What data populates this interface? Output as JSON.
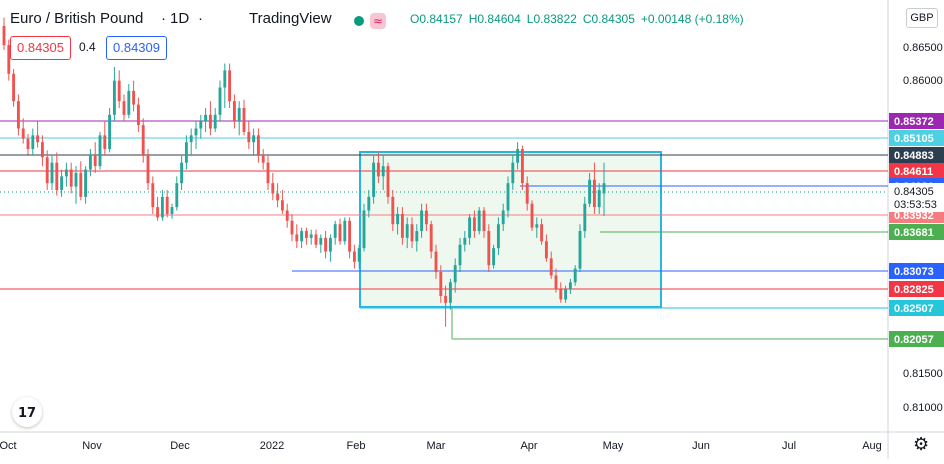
{
  "header": {
    "symbol": "Euro / British Pound",
    "separator": "·",
    "interval": "1D",
    "provider": "TradingView",
    "open": "O0.84157",
    "high": "H0.84604",
    "low": "L0.83822",
    "close": "C0.84305",
    "change": "+0.00148 (+0.18%)",
    "sell_price": "0.84305",
    "spread": "0.4",
    "buy_price": "0.84309"
  },
  "currency_button": "GBP",
  "colors": {
    "up": "#26a69a",
    "down": "#ef5350",
    "box_fill": "#e8f5e9",
    "box_border": "#26b5e5",
    "purple": "#9c27b0",
    "cyan": "#4dd0e1",
    "navy": "#2c3e50",
    "red": "#f23645",
    "pink": "#f77c80",
    "blue": "#2962ff",
    "green": "#4caf50",
    "cyan2": "#26c6da",
    "salmon": "#f44336"
  },
  "chart_data": {
    "type": "candlestick",
    "x_labels": [
      "Oct",
      "Nov",
      "Dec",
      "2022",
      "Feb",
      "Mar",
      "Apr",
      "May",
      "Jun",
      "Jul",
      "Aug"
    ],
    "y_ticks": [
      "0.86500",
      "0.86000",
      "0.81500",
      "0.81000"
    ],
    "ylim": [
      0.8066,
      0.8698
    ],
    "horizontal_levels": [
      {
        "value": 0.85372,
        "label": "0.85372",
        "color": "#9c27b0"
      },
      {
        "value": 0.85105,
        "label": "0.85105",
        "color": "#4dd0e1"
      },
      {
        "value": 0.84883,
        "label": "0.84883",
        "color": "#2c3e50"
      },
      {
        "value": 0.84611,
        "label": "0.84611",
        "color": "#f23645"
      },
      {
        "value": 0.84381,
        "label": "0.84381",
        "color": "#2962ff"
      },
      {
        "value": 0.83932,
        "label": "0.83932",
        "color": "#f77c80"
      },
      {
        "value": 0.83681,
        "label": "0.83681",
        "color": "#4caf50"
      },
      {
        "value": 0.83073,
        "label": "0.83073",
        "color": "#2962ff"
      },
      {
        "value": 0.82825,
        "label": "0.82825",
        "color": "#f23645"
      },
      {
        "value": 0.82507,
        "label": "0.82507",
        "color": "#26c6da"
      },
      {
        "value": 0.82057,
        "label": "0.82057",
        "color": "#4caf50"
      }
    ],
    "current_price": {
      "value": 0.84305,
      "label": "0.84305",
      "countdown": "03:53:53"
    },
    "range_box": {
      "low": 0.82507,
      "high": 0.84883
    },
    "candles": [
      {
        "o": 0.866,
        "h": 0.8672,
        "l": 0.8625,
        "c": 0.8632
      },
      {
        "o": 0.8632,
        "h": 0.864,
        "l": 0.858,
        "c": 0.859
      },
      {
        "o": 0.859,
        "h": 0.8597,
        "l": 0.8542,
        "c": 0.855
      },
      {
        "o": 0.855,
        "h": 0.856,
        "l": 0.85,
        "c": 0.851
      },
      {
        "o": 0.851,
        "h": 0.8525,
        "l": 0.8488,
        "c": 0.8495
      },
      {
        "o": 0.8495,
        "h": 0.8502,
        "l": 0.8472,
        "c": 0.848
      },
      {
        "o": 0.848,
        "h": 0.851,
        "l": 0.847,
        "c": 0.85
      },
      {
        "o": 0.85,
        "h": 0.852,
        "l": 0.8482,
        "c": 0.849
      },
      {
        "o": 0.849,
        "h": 0.85,
        "l": 0.8455,
        "c": 0.8468
      },
      {
        "o": 0.8468,
        "h": 0.8478,
        "l": 0.842,
        "c": 0.843
      },
      {
        "o": 0.843,
        "h": 0.847,
        "l": 0.842,
        "c": 0.846
      },
      {
        "o": 0.846,
        "h": 0.8475,
        "l": 0.8412,
        "c": 0.842
      },
      {
        "o": 0.842,
        "h": 0.845,
        "l": 0.841,
        "c": 0.844
      },
      {
        "o": 0.844,
        "h": 0.846,
        "l": 0.8425,
        "c": 0.845
      },
      {
        "o": 0.845,
        "h": 0.846,
        "l": 0.8415,
        "c": 0.8425
      },
      {
        "o": 0.8425,
        "h": 0.8455,
        "l": 0.84,
        "c": 0.8445
      },
      {
        "o": 0.8445,
        "h": 0.8462,
        "l": 0.8405,
        "c": 0.841
      },
      {
        "o": 0.841,
        "h": 0.8455,
        "l": 0.84,
        "c": 0.845
      },
      {
        "o": 0.845,
        "h": 0.848,
        "l": 0.844,
        "c": 0.847
      },
      {
        "o": 0.847,
        "h": 0.849,
        "l": 0.8445,
        "c": 0.8455
      },
      {
        "o": 0.8455,
        "h": 0.8505,
        "l": 0.845,
        "c": 0.85
      },
      {
        "o": 0.85,
        "h": 0.852,
        "l": 0.847,
        "c": 0.848
      },
      {
        "o": 0.848,
        "h": 0.854,
        "l": 0.8475,
        "c": 0.853
      },
      {
        "o": 0.853,
        "h": 0.86,
        "l": 0.852,
        "c": 0.858
      },
      {
        "o": 0.858,
        "h": 0.8595,
        "l": 0.854,
        "c": 0.855
      },
      {
        "o": 0.855,
        "h": 0.856,
        "l": 0.852,
        "c": 0.853
      },
      {
        "o": 0.853,
        "h": 0.8575,
        "l": 0.8525,
        "c": 0.8565
      },
      {
        "o": 0.8565,
        "h": 0.858,
        "l": 0.8535,
        "c": 0.8545
      },
      {
        "o": 0.8545,
        "h": 0.8555,
        "l": 0.8505,
        "c": 0.8515
      },
      {
        "o": 0.8515,
        "h": 0.8525,
        "l": 0.846,
        "c": 0.847
      },
      {
        "o": 0.847,
        "h": 0.848,
        "l": 0.842,
        "c": 0.843
      },
      {
        "o": 0.843,
        "h": 0.844,
        "l": 0.8385,
        "c": 0.8395
      },
      {
        "o": 0.8395,
        "h": 0.841,
        "l": 0.8375,
        "c": 0.838
      },
      {
        "o": 0.838,
        "h": 0.842,
        "l": 0.8375,
        "c": 0.841
      },
      {
        "o": 0.841,
        "h": 0.842,
        "l": 0.838,
        "c": 0.8385
      },
      {
        "o": 0.8385,
        "h": 0.84,
        "l": 0.8378,
        "c": 0.8395
      },
      {
        "o": 0.8395,
        "h": 0.844,
        "l": 0.839,
        "c": 0.843
      },
      {
        "o": 0.843,
        "h": 0.847,
        "l": 0.842,
        "c": 0.846
      },
      {
        "o": 0.846,
        "h": 0.85,
        "l": 0.845,
        "c": 0.849
      },
      {
        "o": 0.849,
        "h": 0.851,
        "l": 0.847,
        "c": 0.85
      },
      {
        "o": 0.85,
        "h": 0.852,
        "l": 0.848,
        "c": 0.851
      },
      {
        "o": 0.851,
        "h": 0.853,
        "l": 0.8495,
        "c": 0.852
      },
      {
        "o": 0.852,
        "h": 0.854,
        "l": 0.8505,
        "c": 0.853
      },
      {
        "o": 0.853,
        "h": 0.855,
        "l": 0.85,
        "c": 0.851
      },
      {
        "o": 0.851,
        "h": 0.854,
        "l": 0.8505,
        "c": 0.853
      },
      {
        "o": 0.853,
        "h": 0.858,
        "l": 0.852,
        "c": 0.857
      },
      {
        "o": 0.857,
        "h": 0.8605,
        "l": 0.854,
        "c": 0.8595
      },
      {
        "o": 0.8595,
        "h": 0.8605,
        "l": 0.854,
        "c": 0.855
      },
      {
        "o": 0.855,
        "h": 0.856,
        "l": 0.851,
        "c": 0.852
      },
      {
        "o": 0.852,
        "h": 0.855,
        "l": 0.85,
        "c": 0.854
      },
      {
        "o": 0.854,
        "h": 0.8552,
        "l": 0.85,
        "c": 0.8505
      },
      {
        "o": 0.8505,
        "h": 0.852,
        "l": 0.848,
        "c": 0.849
      },
      {
        "o": 0.849,
        "h": 0.851,
        "l": 0.847,
        "c": 0.85
      },
      {
        "o": 0.85,
        "h": 0.851,
        "l": 0.846,
        "c": 0.847
      },
      {
        "o": 0.847,
        "h": 0.848,
        "l": 0.845,
        "c": 0.846
      },
      {
        "o": 0.846,
        "h": 0.847,
        "l": 0.842,
        "c": 0.843
      },
      {
        "o": 0.843,
        "h": 0.8445,
        "l": 0.8405,
        "c": 0.8415
      },
      {
        "o": 0.8415,
        "h": 0.843,
        "l": 0.8395,
        "c": 0.8405
      },
      {
        "o": 0.8405,
        "h": 0.842,
        "l": 0.8385,
        "c": 0.839
      },
      {
        "o": 0.839,
        "h": 0.84,
        "l": 0.8365,
        "c": 0.8375
      },
      {
        "o": 0.8375,
        "h": 0.8385,
        "l": 0.8345,
        "c": 0.8355
      },
      {
        "o": 0.8355,
        "h": 0.837,
        "l": 0.8335,
        "c": 0.8345
      },
      {
        "o": 0.8345,
        "h": 0.8365,
        "l": 0.8335,
        "c": 0.836
      },
      {
        "o": 0.836,
        "h": 0.8365,
        "l": 0.834,
        "c": 0.835
      },
      {
        "o": 0.835,
        "h": 0.8362,
        "l": 0.834,
        "c": 0.8355
      },
      {
        "o": 0.8355,
        "h": 0.8362,
        "l": 0.8335,
        "c": 0.834
      },
      {
        "o": 0.834,
        "h": 0.8355,
        "l": 0.8328,
        "c": 0.835
      },
      {
        "o": 0.835,
        "h": 0.836,
        "l": 0.832,
        "c": 0.833
      },
      {
        "o": 0.833,
        "h": 0.8355,
        "l": 0.8315,
        "c": 0.835
      },
      {
        "o": 0.835,
        "h": 0.8375,
        "l": 0.834,
        "c": 0.837
      },
      {
        "o": 0.837,
        "h": 0.8378,
        "l": 0.834,
        "c": 0.8345
      },
      {
        "o": 0.8345,
        "h": 0.838,
        "l": 0.834,
        "c": 0.8375
      },
      {
        "o": 0.8375,
        "h": 0.838,
        "l": 0.832,
        "c": 0.833
      },
      {
        "o": 0.833,
        "h": 0.834,
        "l": 0.8305,
        "c": 0.8315
      },
      {
        "o": 0.8315,
        "h": 0.834,
        "l": 0.8305,
        "c": 0.8335
      },
      {
        "o": 0.8335,
        "h": 0.84,
        "l": 0.833,
        "c": 0.839
      },
      {
        "o": 0.839,
        "h": 0.842,
        "l": 0.838,
        "c": 0.841
      },
      {
        "o": 0.841,
        "h": 0.847,
        "l": 0.84,
        "c": 0.846
      },
      {
        "o": 0.846,
        "h": 0.8475,
        "l": 0.843,
        "c": 0.844
      },
      {
        "o": 0.844,
        "h": 0.847,
        "l": 0.842,
        "c": 0.8455
      },
      {
        "o": 0.8455,
        "h": 0.846,
        "l": 0.84,
        "c": 0.841
      },
      {
        "o": 0.841,
        "h": 0.842,
        "l": 0.836,
        "c": 0.837
      },
      {
        "o": 0.837,
        "h": 0.8395,
        "l": 0.8355,
        "c": 0.8385
      },
      {
        "o": 0.8385,
        "h": 0.8395,
        "l": 0.834,
        "c": 0.835
      },
      {
        "o": 0.835,
        "h": 0.838,
        "l": 0.8335,
        "c": 0.837
      },
      {
        "o": 0.837,
        "h": 0.838,
        "l": 0.8335,
        "c": 0.8345
      },
      {
        "o": 0.8345,
        "h": 0.837,
        "l": 0.833,
        "c": 0.836
      },
      {
        "o": 0.836,
        "h": 0.84,
        "l": 0.835,
        "c": 0.839
      },
      {
        "o": 0.839,
        "h": 0.84,
        "l": 0.836,
        "c": 0.837
      },
      {
        "o": 0.837,
        "h": 0.8375,
        "l": 0.832,
        "c": 0.833
      },
      {
        "o": 0.833,
        "h": 0.834,
        "l": 0.829,
        "c": 0.83
      },
      {
        "o": 0.83,
        "h": 0.831,
        "l": 0.8255,
        "c": 0.8265
      },
      {
        "o": 0.8265,
        "h": 0.828,
        "l": 0.822,
        "c": 0.8255
      },
      {
        "o": 0.8255,
        "h": 0.829,
        "l": 0.8245,
        "c": 0.8285
      },
      {
        "o": 0.8285,
        "h": 0.832,
        "l": 0.827,
        "c": 0.831
      },
      {
        "o": 0.831,
        "h": 0.835,
        "l": 0.83,
        "c": 0.834
      },
      {
        "o": 0.834,
        "h": 0.836,
        "l": 0.833,
        "c": 0.835
      },
      {
        "o": 0.835,
        "h": 0.8385,
        "l": 0.834,
        "c": 0.838
      },
      {
        "o": 0.838,
        "h": 0.839,
        "l": 0.835,
        "c": 0.836
      },
      {
        "o": 0.836,
        "h": 0.8395,
        "l": 0.8355,
        "c": 0.839
      },
      {
        "o": 0.839,
        "h": 0.8395,
        "l": 0.835,
        "c": 0.836
      },
      {
        "o": 0.836,
        "h": 0.837,
        "l": 0.83,
        "c": 0.831
      },
      {
        "o": 0.831,
        "h": 0.834,
        "l": 0.8305,
        "c": 0.8335
      },
      {
        "o": 0.8335,
        "h": 0.838,
        "l": 0.8325,
        "c": 0.837
      },
      {
        "o": 0.837,
        "h": 0.84,
        "l": 0.836,
        "c": 0.839
      },
      {
        "o": 0.839,
        "h": 0.844,
        "l": 0.838,
        "c": 0.843
      },
      {
        "o": 0.843,
        "h": 0.847,
        "l": 0.842,
        "c": 0.846
      },
      {
        "o": 0.846,
        "h": 0.849,
        "l": 0.845,
        "c": 0.848
      },
      {
        "o": 0.848,
        "h": 0.8485,
        "l": 0.842,
        "c": 0.843
      },
      {
        "o": 0.843,
        "h": 0.844,
        "l": 0.839,
        "c": 0.84
      },
      {
        "o": 0.84,
        "h": 0.8405,
        "l": 0.836,
        "c": 0.8365
      },
      {
        "o": 0.8365,
        "h": 0.838,
        "l": 0.835,
        "c": 0.837
      },
      {
        "o": 0.837,
        "h": 0.8378,
        "l": 0.834,
        "c": 0.8345
      },
      {
        "o": 0.8345,
        "h": 0.8355,
        "l": 0.8315,
        "c": 0.832
      },
      {
        "o": 0.832,
        "h": 0.833,
        "l": 0.829,
        "c": 0.8295
      },
      {
        "o": 0.8295,
        "h": 0.8305,
        "l": 0.827,
        "c": 0.8275
      },
      {
        "o": 0.8275,
        "h": 0.8285,
        "l": 0.8255,
        "c": 0.826
      },
      {
        "o": 0.826,
        "h": 0.828,
        "l": 0.8255,
        "c": 0.8275
      },
      {
        "o": 0.8275,
        "h": 0.829,
        "l": 0.8268,
        "c": 0.8285
      },
      {
        "o": 0.8285,
        "h": 0.831,
        "l": 0.828,
        "c": 0.8305
      },
      {
        "o": 0.8305,
        "h": 0.837,
        "l": 0.83,
        "c": 0.836
      },
      {
        "o": 0.836,
        "h": 0.841,
        "l": 0.835,
        "c": 0.84
      },
      {
        "o": 0.84,
        "h": 0.8445,
        "l": 0.8395,
        "c": 0.8435
      },
      {
        "o": 0.8435,
        "h": 0.846,
        "l": 0.8385,
        "c": 0.8395
      },
      {
        "o": 0.8395,
        "h": 0.843,
        "l": 0.8385,
        "c": 0.842
      },
      {
        "o": 0.8415,
        "h": 0.846,
        "l": 0.8382,
        "c": 0.843
      }
    ]
  }
}
